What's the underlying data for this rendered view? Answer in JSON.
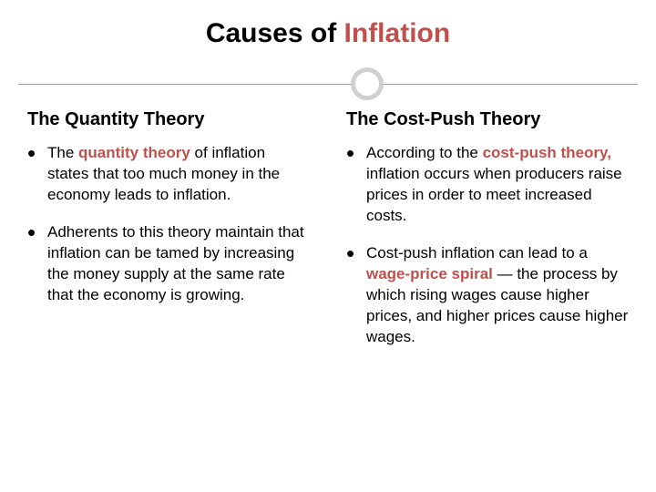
{
  "title_pre": "Causes of ",
  "title_hl": "Inflation",
  "accent_color": "#c0504d",
  "divider_circle_color": "#d0d0d0",
  "divider_line_color": "#a0a0a0",
  "left": {
    "heading": "The Quantity Theory",
    "bullets": [
      {
        "pre": "The ",
        "term": "quantity theory",
        "post": " of inflation states that too much money in the economy leads to inflation."
      },
      {
        "pre": "",
        "term": "",
        "post": "Adherents to this theory maintain that inflation can be tamed by increasing the money supply at the same rate that the economy is growing."
      }
    ]
  },
  "right": {
    "heading": "The Cost-Push Theory",
    "bullets": [
      {
        "pre": "According to the ",
        "term": "cost-push theory,",
        "post": " inflation occurs when producers raise prices in order to meet increased costs."
      },
      {
        "pre": "Cost-push inflation can lead to a ",
        "term": "wage-price spiral",
        "post": " — the process by which rising wages cause higher prices, and higher prices cause higher wages."
      }
    ]
  }
}
